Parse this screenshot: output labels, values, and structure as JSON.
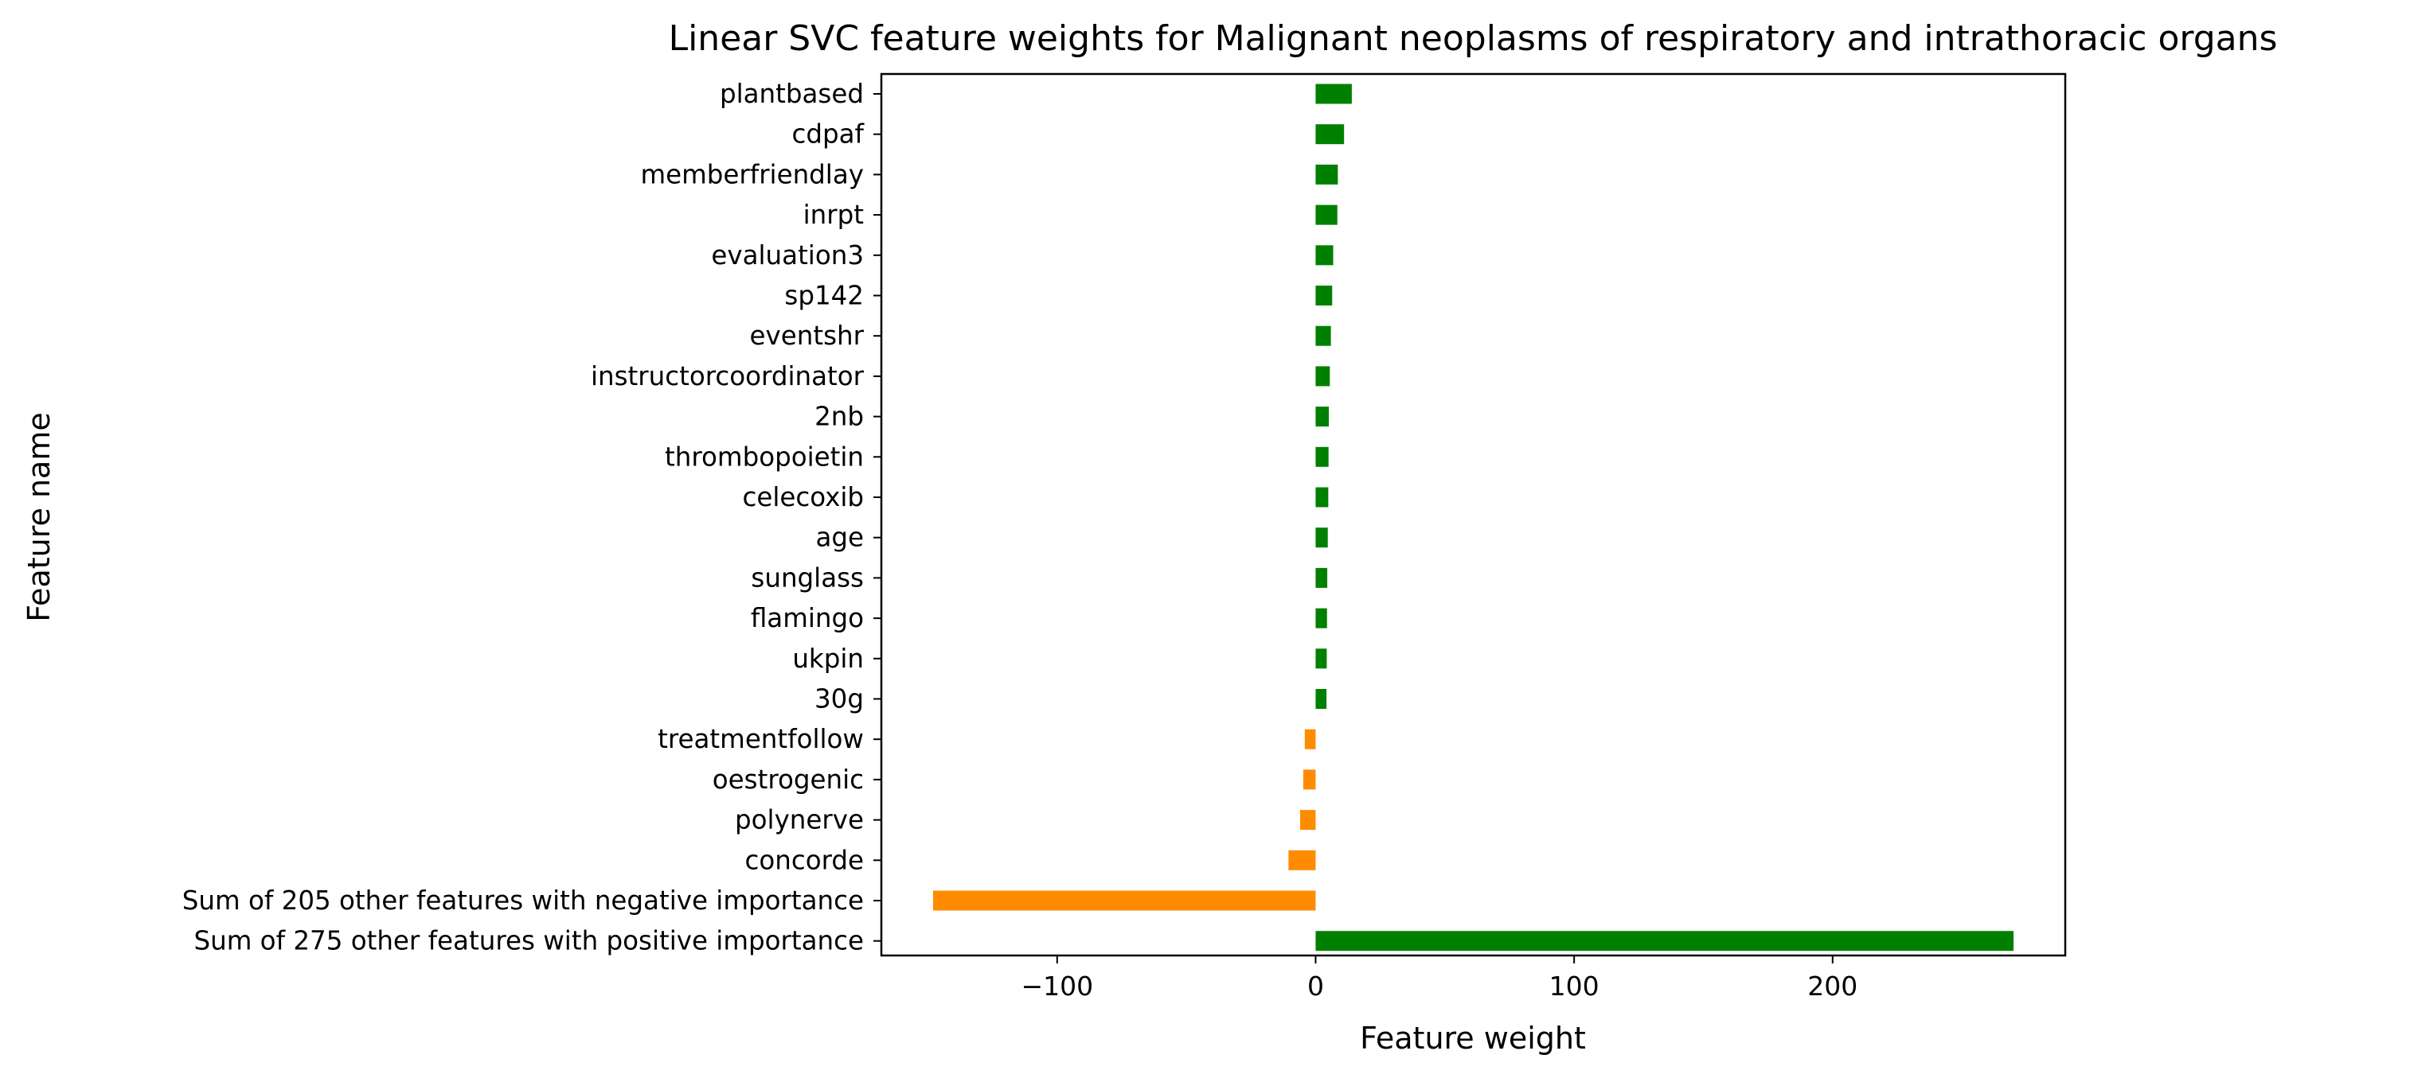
{
  "chart_data": {
    "type": "bar",
    "orientation": "horizontal",
    "title": "Linear SVC feature weights for Malignant neoplasms of respiratory and intrathoracic organs",
    "xlabel": "Feature weight",
    "ylabel": "Feature name",
    "xlim": [
      -168,
      290
    ],
    "xticks": [
      {
        "value": -100,
        "label": "−100"
      },
      {
        "value": 0,
        "label": "0"
      },
      {
        "value": 100,
        "label": "100"
      },
      {
        "value": 200,
        "label": "200"
      }
    ],
    "grid": false,
    "legend": "none",
    "colors": {
      "positive": "#008000",
      "negative": "#ff8c00"
    },
    "categories": [
      "plantbased",
      "cdpaf",
      "memberfriendlay",
      "inrpt",
      "evaluation3",
      "sp142",
      "eventshr",
      "instructorcoordinator",
      "2nb",
      "thrombopoietin",
      "celecoxib",
      "age",
      "sunglass",
      "flamingo",
      "ukpin",
      "30g",
      "treatmentfollow",
      "oestrogenic",
      "polynerve",
      "concorde",
      "Sum of 205 other features with negative importance",
      "Sum of 275 other features with positive importance"
    ],
    "values": [
      14.0,
      11.0,
      8.6,
      8.4,
      6.8,
      6.4,
      5.9,
      5.5,
      5.1,
      5.0,
      4.9,
      4.7,
      4.5,
      4.4,
      4.3,
      4.2,
      -4.2,
      -4.8,
      -6.0,
      -10.5,
      -148.0,
      270.0
    ]
  }
}
